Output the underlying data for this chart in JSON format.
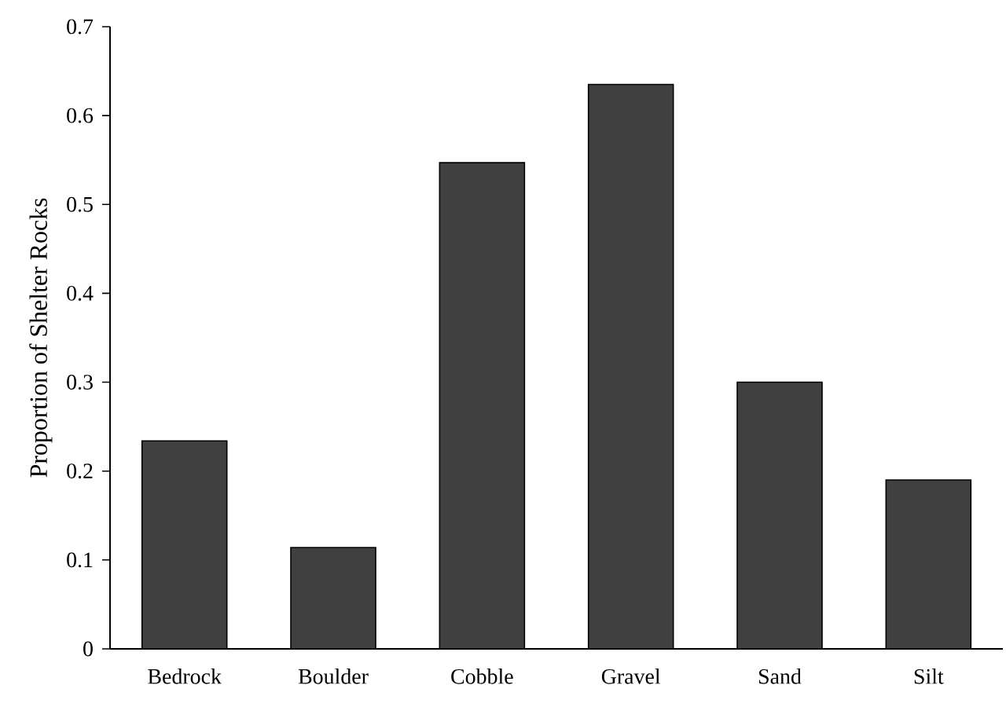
{
  "chart_data": {
    "type": "bar",
    "ylabel": "Proportion of Shelter Rocks",
    "categories": [
      "Bedrock",
      "Boulder",
      "Cobble",
      "Gravel",
      "Sand",
      "Silt"
    ],
    "values": [
      0.234,
      0.114,
      0.547,
      0.635,
      0.3,
      0.19
    ],
    "color": "#404040",
    "ylim": [
      0,
      0.7
    ],
    "yticks": [
      0,
      0.1,
      0.2,
      0.3,
      0.4,
      0.5,
      0.6,
      0.7
    ],
    "grid": false
  }
}
